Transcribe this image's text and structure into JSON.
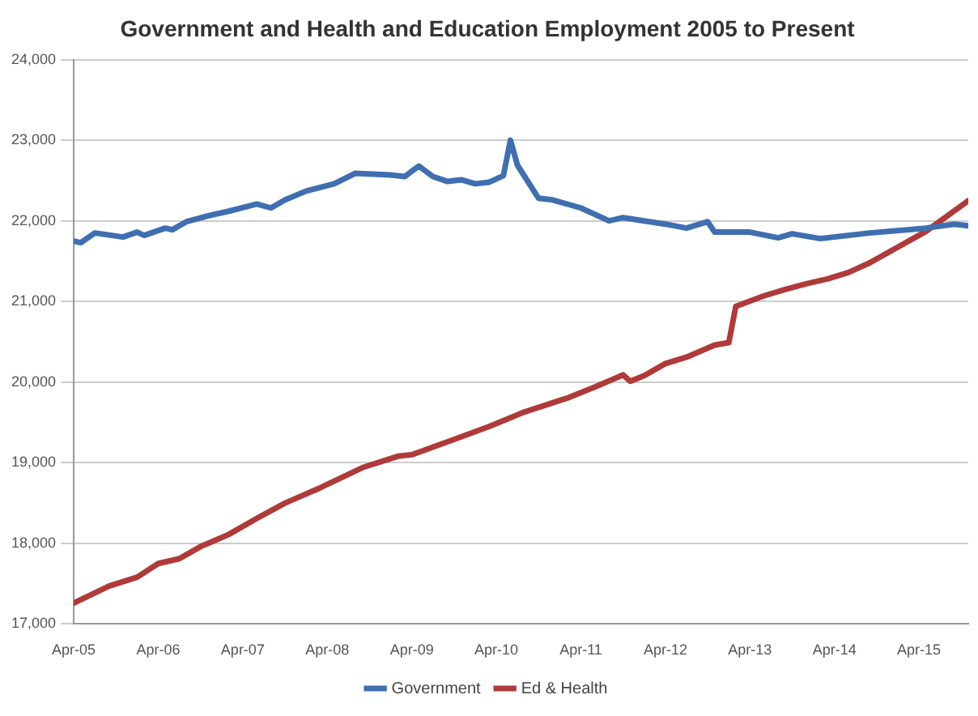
{
  "chart_data": {
    "type": "line",
    "title": "Government and Health and Education Employment 2005 to Present",
    "xlim": [
      "2005-04",
      "2015-11"
    ],
    "xticks": [
      {
        "value": "2005-04",
        "label": "Apr-05"
      },
      {
        "value": "2006-04",
        "label": "Apr-06"
      },
      {
        "value": "2007-04",
        "label": "Apr-07"
      },
      {
        "value": "2008-04",
        "label": "Apr-08"
      },
      {
        "value": "2009-04",
        "label": "Apr-09"
      },
      {
        "value": "2010-04",
        "label": "Apr-10"
      },
      {
        "value": "2011-04",
        "label": "Apr-11"
      },
      {
        "value": "2012-04",
        "label": "Apr-12"
      },
      {
        "value": "2013-04",
        "label": "Apr-13"
      },
      {
        "value": "2014-04",
        "label": "Apr-14"
      },
      {
        "value": "2015-04",
        "label": "Apr-15"
      }
    ],
    "ylim": [
      17000,
      24000
    ],
    "yticks": [
      {
        "value": 17000,
        "label": "17,000"
      },
      {
        "value": 18000,
        "label": "18,000"
      },
      {
        "value": 19000,
        "label": "19,000"
      },
      {
        "value": 20000,
        "label": "20,000"
      },
      {
        "value": 21000,
        "label": "21,000"
      },
      {
        "value": 22000,
        "label": "22,000"
      },
      {
        "value": 23000,
        "label": "23,000"
      },
      {
        "value": 24000,
        "label": "24,000"
      }
    ],
    "grid": "y",
    "legend": "bottom",
    "marker": "none",
    "line_style": "solid",
    "series": [
      {
        "name": "Government",
        "color": "#3f6fb0",
        "x": [
          "2005-04",
          "2005-05",
          "2005-07",
          "2005-11",
          "2006-01",
          "2006-02",
          "2006-05",
          "2006-06",
          "2006-08",
          "2006-11",
          "2007-02",
          "2007-06",
          "2007-08",
          "2007-10",
          "2008-01",
          "2008-05",
          "2008-08",
          "2009-01",
          "2009-03",
          "2009-05",
          "2009-07",
          "2009-09",
          "2009-11",
          "2010-01",
          "2010-03",
          "2010-05",
          "2010-06",
          "2010-07",
          "2010-10",
          "2010-12",
          "2011-04",
          "2011-08",
          "2011-10",
          "2012-04",
          "2012-07",
          "2012-10",
          "2012-11",
          "2013-04",
          "2013-08",
          "2013-10",
          "2014-02",
          "2014-09",
          "2015-05",
          "2015-09",
          "2015-11"
        ],
        "values": [
          21750,
          21730,
          21850,
          21800,
          21860,
          21820,
          21910,
          21890,
          21990,
          22060,
          22120,
          22210,
          22160,
          22260,
          22370,
          22460,
          22590,
          22570,
          22550,
          22680,
          22550,
          22490,
          22510,
          22460,
          22480,
          22560,
          23000,
          22690,
          22280,
          22260,
          22160,
          22000,
          22040,
          21960,
          21910,
          21990,
          21860,
          21860,
          21790,
          21840,
          21780,
          21850,
          21910,
          21960,
          21940
        ]
      },
      {
        "name": "Ed & Health",
        "color": "#b03a3a",
        "x": [
          "2005-04",
          "2005-09",
          "2006-01",
          "2006-04",
          "2006-07",
          "2006-10",
          "2007-02",
          "2007-06",
          "2007-10",
          "2008-03",
          "2008-09",
          "2009-02",
          "2009-04",
          "2009-10",
          "2010-03",
          "2010-08",
          "2011-02",
          "2011-06",
          "2011-10",
          "2011-11",
          "2012-01",
          "2012-04",
          "2012-07",
          "2012-11",
          "2013-01",
          "2013-02",
          "2013-06",
          "2013-09",
          "2013-12",
          "2014-03",
          "2014-06",
          "2014-09",
          "2015-05",
          "2015-11"
        ],
        "values": [
          17260,
          17470,
          17580,
          17750,
          17810,
          17960,
          18110,
          18310,
          18500,
          18690,
          18940,
          19080,
          19100,
          19290,
          19450,
          19630,
          19800,
          19940,
          20090,
          20010,
          20080,
          20230,
          20310,
          20460,
          20490,
          20940,
          21070,
          21150,
          21220,
          21280,
          21360,
          21480,
          21870,
          22250
        ]
      }
    ]
  }
}
